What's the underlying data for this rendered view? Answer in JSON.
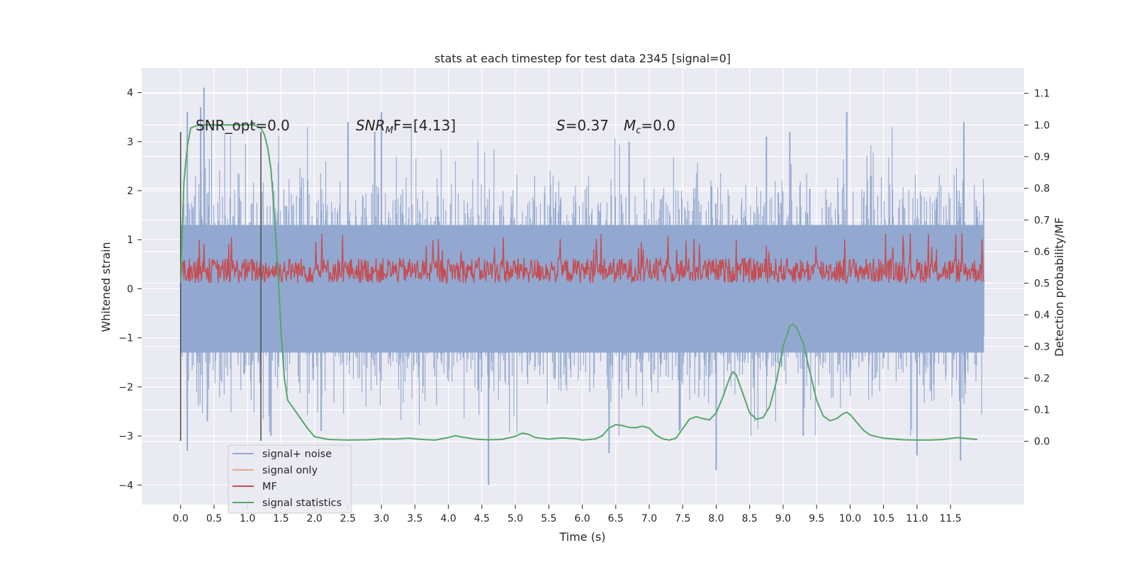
{
  "chart_data": {
    "type": "line",
    "title": "stats at each timestep for test data 2345 [signal=0]",
    "xlabel": "Time (s)",
    "ylabel_left": "Whitened strain",
    "ylabel_right": "Detection probability/MF",
    "xlim": [
      -0.58,
      12.6
    ],
    "ylim_left": [
      -4.4,
      4.5
    ],
    "ylim_right": [
      -0.2,
      1.18
    ],
    "x_ticks": [
      0.0,
      0.5,
      1.0,
      1.5,
      2.0,
      2.5,
      3.0,
      3.5,
      4.0,
      4.5,
      5.0,
      5.5,
      6.0,
      6.5,
      7.0,
      7.5,
      8.0,
      8.5,
      9.0,
      9.5,
      10.0,
      10.5,
      11.0,
      11.5
    ],
    "x_tick_labels": [
      "0.0",
      "0.5",
      "1.0",
      "1.5",
      "2.0",
      "2.5",
      "3.0",
      "3.5",
      "4.0",
      "4.5",
      "5.0",
      "5.5",
      "6.0",
      "6.5",
      "7.0",
      "7.5",
      "8.0",
      "8.5",
      "9.0",
      "9.5",
      "10.0",
      "10.5",
      "11.0",
      "11.5"
    ],
    "y_left_ticks": [
      4,
      3,
      2,
      1,
      0,
      -1,
      -2,
      -3,
      -4
    ],
    "y_left_tick_labels": [
      "4",
      "3",
      "2",
      "1",
      "0",
      "−1",
      "−2",
      "−3",
      "−4"
    ],
    "y_right_ticks": [
      1.1,
      1.0,
      0.9,
      0.8,
      0.7,
      0.6,
      0.5,
      0.4,
      0.3,
      0.2,
      0.1,
      0.0
    ],
    "y_right_tick_labels": [
      "1.1",
      "1.0",
      "0.9",
      "0.8",
      "0.7",
      "0.6",
      "0.5",
      "0.4",
      "0.3",
      "0.2",
      "0.1",
      "0.0"
    ],
    "grid": true,
    "legend_position": "lower-left",
    "annotations": {
      "snr_opt": "SNR_opt=0.0",
      "snr_mf_prefix": "SNR",
      "snr_mf_sub": "M",
      "snr_mf_suffix": "F=[4.13]",
      "s_label": "S",
      "s_value": "=0.37",
      "mc_label": "M",
      "mc_sub": "c",
      "mc_value": "=0.0"
    },
    "vertical_markers_x": [
      0.0,
      1.2
    ],
    "series": [
      {
        "name": "signal+ noise",
        "axis": "left",
        "color": "#92a8d1",
        "x_range": [
          0.0,
          12.0
        ],
        "envelope": {
          "upper_typical": 1.3,
          "lower_typical": -1.3,
          "upper_peaks": [
            [
              0.35,
              4.1
            ],
            [
              0.3,
              3.7
            ],
            [
              0.1,
              3.6
            ],
            [
              2.5,
              3.4
            ],
            [
              3.0,
              3.6
            ],
            [
              2.9,
              3.2
            ],
            [
              9.1,
              3.2
            ],
            [
              9.95,
              3.6
            ],
            [
              11.7,
              3.4
            ],
            [
              8.75,
              3.1
            ],
            [
              6.7,
              3.0
            ]
          ],
          "lower_peaks": [
            [
              4.6,
              -4.0
            ],
            [
              8.0,
              -3.7
            ],
            [
              11.65,
              -3.5
            ],
            [
              11.0,
              -3.4
            ],
            [
              0.1,
              -3.3
            ],
            [
              6.4,
              -3.35
            ],
            [
              7.45,
              -2.9
            ],
            [
              1.35,
              -3.0
            ],
            [
              9.3,
              -3.0
            ],
            [
              2.1,
              -2.9
            ],
            [
              0.4,
              -2.7
            ]
          ]
        }
      },
      {
        "name": "signal only",
        "axis": "left",
        "color": "#e8a98a",
        "x": [],
        "y": []
      },
      {
        "name": "MF",
        "axis": "right",
        "color": "#c44e52",
        "x_range": [
          0.0,
          12.0
        ],
        "baseline_range": [
          0.5,
          0.58
        ],
        "peak_range": [
          0.6,
          0.66
        ]
      },
      {
        "name": "signal statistics",
        "axis": "right",
        "color": "#55a868",
        "x": [
          0.0,
          0.05,
          0.1,
          0.15,
          0.2,
          0.3,
          0.5,
          0.8,
          1.0,
          1.1,
          1.15,
          1.2,
          1.25,
          1.3,
          1.35,
          1.4,
          1.45,
          1.5,
          1.55,
          1.6,
          1.7,
          1.8,
          1.9,
          2.0,
          2.2,
          2.5,
          2.8,
          3.0,
          3.2,
          3.4,
          3.6,
          3.8,
          4.0,
          4.1,
          4.2,
          4.4,
          4.6,
          4.8,
          5.0,
          5.1,
          5.2,
          5.3,
          5.5,
          5.7,
          5.9,
          6.0,
          6.2,
          6.3,
          6.4,
          6.5,
          6.6,
          6.7,
          6.8,
          6.9,
          7.0,
          7.1,
          7.2,
          7.3,
          7.4,
          7.5,
          7.6,
          7.7,
          7.8,
          7.9,
          8.0,
          8.1,
          8.2,
          8.25,
          8.3,
          8.4,
          8.5,
          8.6,
          8.7,
          8.8,
          8.9,
          9.0,
          9.1,
          9.15,
          9.2,
          9.3,
          9.4,
          9.5,
          9.6,
          9.7,
          9.8,
          9.9,
          9.95,
          10.0,
          10.1,
          10.2,
          10.3,
          10.5,
          10.8,
          11.0,
          11.2,
          11.4,
          11.6,
          11.8,
          11.9
        ],
        "y": [
          0.5,
          0.82,
          0.93,
          0.99,
          0.995,
          1.0,
          1.0,
          1.0,
          1.0,
          1.0,
          0.995,
          0.99,
          0.97,
          0.93,
          0.86,
          0.72,
          0.55,
          0.35,
          0.2,
          0.13,
          0.1,
          0.07,
          0.04,
          0.015,
          0.006,
          0.004,
          0.005,
          0.008,
          0.007,
          0.01,
          0.006,
          0.004,
          0.012,
          0.018,
          0.014,
          0.007,
          0.005,
          0.006,
          0.016,
          0.026,
          0.022,
          0.012,
          0.007,
          0.011,
          0.008,
          0.004,
          0.008,
          0.018,
          0.042,
          0.053,
          0.05,
          0.044,
          0.043,
          0.048,
          0.042,
          0.02,
          0.008,
          0.004,
          0.01,
          0.04,
          0.07,
          0.078,
          0.072,
          0.068,
          0.09,
          0.14,
          0.2,
          0.22,
          0.21,
          0.15,
          0.09,
          0.07,
          0.075,
          0.11,
          0.19,
          0.3,
          0.365,
          0.37,
          0.36,
          0.31,
          0.22,
          0.13,
          0.08,
          0.065,
          0.072,
          0.088,
          0.092,
          0.085,
          0.06,
          0.035,
          0.02,
          0.01,
          0.005,
          0.004,
          0.004,
          0.006,
          0.012,
          0.008,
          0.006
        ]
      }
    ]
  }
}
